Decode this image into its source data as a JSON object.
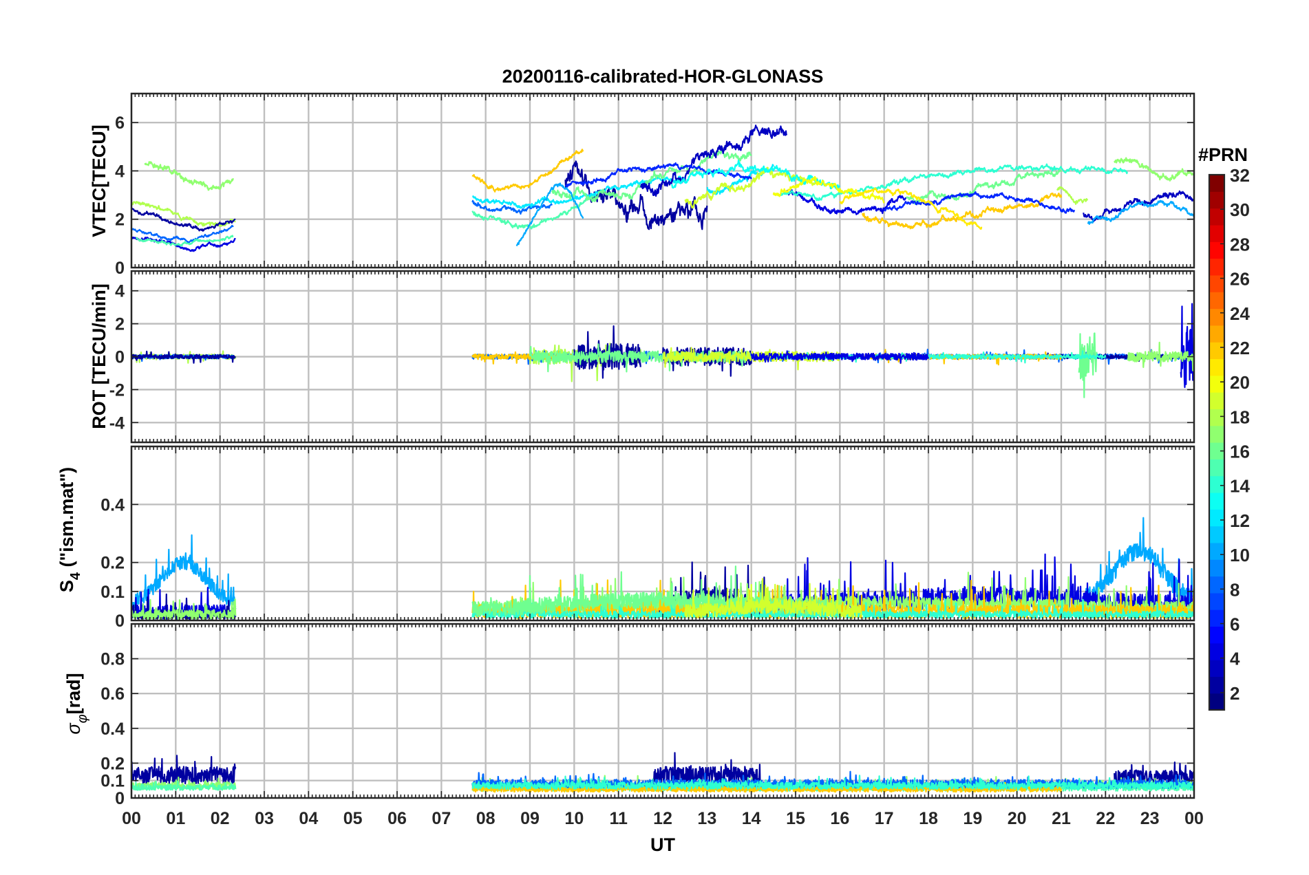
{
  "chart_data": {
    "type": "line",
    "title": "20200116-calibrated-HOR-GLONASS",
    "xlabel": "UT",
    "x_tick_labels": [
      "00",
      "01",
      "02",
      "03",
      "04",
      "05",
      "06",
      "07",
      "08",
      "09",
      "10",
      "11",
      "12",
      "13",
      "14",
      "15",
      "16",
      "17",
      "18",
      "19",
      "20",
      "21",
      "22",
      "23",
      "00"
    ],
    "xlim_hours": [
      0,
      24
    ],
    "grid": true,
    "colorbar": {
      "label": "#PRN",
      "colormap": "jet",
      "range": [
        1,
        32
      ],
      "tick_labels": [
        "2",
        "4",
        "6",
        "8",
        "10",
        "12",
        "14",
        "16",
        "18",
        "20",
        "22",
        "24",
        "26",
        "28",
        "30",
        "32"
      ]
    },
    "panels": [
      {
        "id": "vtec",
        "ylabel": "VTEC[TECU]",
        "ylim": [
          0,
          7.2
        ],
        "yticks": [
          0,
          2,
          4,
          6
        ],
        "ytick_labels": [
          "0",
          "2",
          "4",
          "6"
        ],
        "series": [
          {
            "prn": 18,
            "segments": [
              {
                "t0": 0.0,
                "t1": 2.35,
                "base": 2.2,
                "amp": 0.5,
                "noise": 0.15
              },
              {
                "t0": 20.9,
                "t1": 21.6,
                "base": 3.0,
                "amp": 0.3,
                "noise": 0.15
              }
            ]
          },
          {
            "prn": 17,
            "segments": [
              {
                "t0": 0.3,
                "t1": 2.3,
                "base": 3.8,
                "amp": 0.6,
                "noise": 0.2
              },
              {
                "t0": 22.2,
                "t1": 24.0,
                "base": 4.0,
                "amp": 0.5,
                "noise": 0.2
              }
            ]
          },
          {
            "prn": 2,
            "segments": [
              {
                "t0": 0.0,
                "t1": 2.35,
                "base": 2.1,
                "amp": 0.5,
                "noise": 0.12
              },
              {
                "t0": 9.8,
                "t1": 13.0,
                "base": 2.8,
                "amp": 0.9,
                "noise": 0.6
              }
            ]
          },
          {
            "prn": 4,
            "segments": [
              {
                "t0": 0.0,
                "t1": 2.35,
                "base": 1.1,
                "amp": 0.3,
                "noise": 0.12
              },
              {
                "t0": 14.8,
                "t1": 17.5,
                "base": 2.8,
                "amp": 0.6,
                "noise": 0.2
              }
            ]
          },
          {
            "prn": 8,
            "segments": [
              {
                "t0": 0.0,
                "t1": 2.3,
                "base": 1.5,
                "amp": 0.4,
                "noise": 0.1
              },
              {
                "t0": 7.7,
                "t1": 9.5,
                "base": 2.6,
                "amp": 0.4,
                "noise": 0.15
              }
            ]
          },
          {
            "prn": 15,
            "segments": [
              {
                "t0": 0.1,
                "t1": 2.3,
                "base": 1.2,
                "amp": 0.2,
                "noise": 0.1
              },
              {
                "t0": 7.7,
                "t1": 10.5,
                "base": 2.3,
                "amp": 0.8,
                "noise": 0.15
              }
            ]
          },
          {
            "prn": 22,
            "segments": [
              {
                "t0": 7.7,
                "t1": 10.2,
                "base": 4.0,
                "amp": 1.1,
                "noise": 0.15
              },
              {
                "t0": 16.5,
                "t1": 21.0,
                "base": 2.4,
                "amp": 0.7,
                "noise": 0.2
              }
            ]
          },
          {
            "prn": 12,
            "segments": [
              {
                "t0": 7.7,
                "t1": 12.5,
                "base": 3.2,
                "amp": 0.7,
                "noise": 0.15
              },
              {
                "t0": 13.0,
                "t1": 14.5,
                "base": 3.6,
                "amp": 0.6,
                "noise": 0.2
              }
            ]
          },
          {
            "prn": 16,
            "segments": [
              {
                "t0": 9.5,
                "t1": 14.0,
                "base": 3.8,
                "amp": 1.1,
                "noise": 0.25
              },
              {
                "t0": 17.5,
                "t1": 21.0,
                "base": 3.4,
                "amp": 0.6,
                "noise": 0.2
              }
            ]
          },
          {
            "prn": 3,
            "segments": [
              {
                "t0": 11.5,
                "t1": 14.8,
                "base": 4.4,
                "amp": 1.3,
                "noise": 0.35
              },
              {
                "t0": 21.5,
                "t1": 24.0,
                "base": 2.6,
                "amp": 0.4,
                "noise": 0.2
              }
            ]
          },
          {
            "prn": 14,
            "segments": [
              {
                "t0": 14.6,
                "t1": 22.5,
                "base": 3.6,
                "amp": 0.7,
                "noise": 0.15
              }
            ]
          },
          {
            "prn": 19,
            "segments": [
              {
                "t0": 12.5,
                "t1": 15.5,
                "base": 3.3,
                "amp": 0.6,
                "noise": 0.25
              }
            ]
          },
          {
            "prn": 10,
            "segments": [
              {
                "t0": 8.7,
                "t1": 10.2,
                "base": 2.0,
                "amp": 1.6,
                "noise": 0.15
              },
              {
                "t0": 21.6,
                "t1": 24.0,
                "base": 2.2,
                "amp": 0.6,
                "noise": 0.15
              }
            ]
          },
          {
            "prn": 6,
            "segments": [
              {
                "t0": 9.8,
                "t1": 14.0,
                "base": 3.7,
                "amp": 0.6,
                "noise": 0.15
              },
              {
                "t0": 17.0,
                "t1": 21.3,
                "base": 2.6,
                "amp": 0.5,
                "noise": 0.15
              }
            ]
          },
          {
            "prn": 13,
            "segments": [
              {
                "t0": 12.2,
                "t1": 16.0,
                "base": 3.5,
                "amp": 0.7,
                "noise": 0.25
              }
            ]
          },
          {
            "prn": 20,
            "segments": [
              {
                "t0": 14.5,
                "t1": 17.0,
                "base": 3.0,
                "amp": 0.6,
                "noise": 0.2
              }
            ]
          },
          {
            "prn": 21,
            "segments": [
              {
                "t0": 16.0,
                "t1": 19.2,
                "base": 2.5,
                "amp": 0.9,
                "noise": 0.15
              }
            ]
          }
        ]
      },
      {
        "id": "rot",
        "ylabel": "ROT [TECU/min]",
        "ylim": [
          -5.2,
          5.2
        ],
        "yticks": [
          -4,
          -2,
          0,
          2,
          4
        ],
        "ytick_labels": [
          "-4",
          "-2",
          "0",
          "2",
          "4"
        ],
        "series": [
          {
            "prn": 18,
            "segments": [
              {
                "t0": 0.0,
                "t1": 2.35,
                "noise": 0.15
              },
              {
                "t0": 9.0,
                "t1": 11.5,
                "noise": 0.45
              }
            ]
          },
          {
            "prn": 8,
            "segments": [
              {
                "t0": 0.0,
                "t1": 2.3,
                "noise": 0.12
              },
              {
                "t0": 7.7,
                "t1": 24.0,
                "noise": 0.15
              }
            ]
          },
          {
            "prn": 2,
            "segments": [
              {
                "t0": 0.0,
                "t1": 2.35,
                "noise": 0.12
              },
              {
                "t0": 10.0,
                "t1": 11.5,
                "noise": 0.8
              },
              {
                "t0": 12.0,
                "t1": 14.0,
                "noise": 0.55
              },
              {
                "t0": 20.0,
                "t1": 24.0,
                "noise": 0.12
              }
            ]
          },
          {
            "prn": 22,
            "segments": [
              {
                "t0": 7.7,
                "t1": 10.0,
                "noise": 0.15
              },
              {
                "t0": 16.5,
                "t1": 21.0,
                "noise": 0.15
              }
            ]
          },
          {
            "prn": 16,
            "segments": [
              {
                "t0": 9.0,
                "t1": 14.0,
                "noise": 0.35
              },
              {
                "t0": 21.4,
                "t1": 21.8,
                "noise": 1.5
              }
            ]
          },
          {
            "prn": 19,
            "segments": [
              {
                "t0": 12.0,
                "t1": 16.0,
                "noise": 0.3
              }
            ]
          },
          {
            "prn": 14,
            "segments": [
              {
                "t0": 14.5,
                "t1": 22.0,
                "noise": 0.12
              }
            ]
          },
          {
            "prn": 4,
            "segments": [
              {
                "t0": 14.0,
                "t1": 18.0,
                "noise": 0.2
              },
              {
                "t0": 23.7,
                "t1": 24.0,
                "noise": 2.0
              }
            ]
          },
          {
            "prn": 17,
            "segments": [
              {
                "t0": 22.5,
                "t1": 24.0,
                "noise": 0.3
              }
            ]
          }
        ]
      },
      {
        "id": "s4",
        "ylabel": "S4 (\"ism.mat\")",
        "ylim": [
          0,
          0.6
        ],
        "yticks": [
          0,
          0.1,
          0.2,
          0.4
        ],
        "ytick_labels": [
          "0",
          "0.1",
          "0.2",
          "0.4"
        ],
        "series": [
          {
            "prn": 10,
            "segments": [
              {
                "t0": 0.0,
                "t1": 2.35,
                "base": 0.05,
                "bump": 0.15,
                "noise": 0.03
              },
              {
                "t0": 21.5,
                "t1": 24.0,
                "base": 0.06,
                "bump": 0.18,
                "noise": 0.04
              }
            ]
          },
          {
            "prn": 4,
            "segments": [
              {
                "t0": 0.0,
                "t1": 2.35,
                "base": 0.03,
                "bump": 0.0,
                "noise": 0.03
              },
              {
                "t0": 14.5,
                "t1": 24.0,
                "base": 0.05,
                "bump": 0.03,
                "noise": 0.045
              }
            ]
          },
          {
            "prn": 2,
            "segments": [
              {
                "t0": 0.0,
                "t1": 2.35,
                "base": 0.02,
                "bump": 0.0,
                "noise": 0.02
              },
              {
                "t0": 11.8,
                "t1": 14.5,
                "base": 0.04,
                "bump": 0.05,
                "noise": 0.04
              }
            ]
          },
          {
            "prn": 17,
            "segments": [
              {
                "t0": 0.0,
                "t1": 2.35,
                "base": 0.02,
                "bump": 0.0,
                "noise": 0.02
              },
              {
                "t0": 7.7,
                "t1": 24.0,
                "base": 0.04,
                "bump": 0.02,
                "noise": 0.03
              }
            ]
          },
          {
            "prn": 22,
            "segments": [
              {
                "t0": 7.7,
                "t1": 24.0,
                "base": 0.03,
                "bump": 0.0,
                "noise": 0.03
              }
            ]
          },
          {
            "prn": 14,
            "segments": [
              {
                "t0": 7.7,
                "t1": 24.0,
                "base": 0.02,
                "bump": 0.0,
                "noise": 0.015
              }
            ]
          },
          {
            "prn": 16,
            "segments": [
              {
                "t0": 7.7,
                "t1": 16.0,
                "base": 0.04,
                "bump": 0.03,
                "noise": 0.035
              }
            ]
          },
          {
            "prn": 19,
            "segments": [
              {
                "t0": 12.5,
                "t1": 16.5,
                "base": 0.03,
                "bump": 0.02,
                "noise": 0.03
              }
            ]
          }
        ]
      },
      {
        "id": "sigma_phi",
        "ylabel": "σφ[rad]",
        "ylim": [
          0,
          1.0
        ],
        "yticks": [
          0,
          0.1,
          0.2,
          0.4,
          0.6,
          0.8
        ],
        "ytick_labels": [
          "0",
          "0.1",
          "0.2",
          "0.4",
          "0.6",
          "0.8"
        ],
        "series": [
          {
            "prn": 2,
            "segments": [
              {
                "t0": 0.0,
                "t1": 2.35,
                "base": 0.13,
                "noise": 0.05
              },
              {
                "t0": 11.8,
                "t1": 14.2,
                "base": 0.13,
                "noise": 0.05
              },
              {
                "t0": 22.2,
                "t1": 24.0,
                "base": 0.12,
                "noise": 0.04
              }
            ]
          },
          {
            "prn": 17,
            "segments": [
              {
                "t0": 0.0,
                "t1": 2.35,
                "base": 0.07,
                "noise": 0.02
              },
              {
                "t0": 7.7,
                "t1": 24.0,
                "base": 0.07,
                "noise": 0.02
              }
            ]
          },
          {
            "prn": 15,
            "segments": [
              {
                "t0": 0.0,
                "t1": 2.35,
                "base": 0.06,
                "noise": 0.015
              },
              {
                "t0": 7.7,
                "t1": 24.0,
                "base": 0.06,
                "noise": 0.02
              }
            ]
          },
          {
            "prn": 8,
            "segments": [
              {
                "t0": 7.7,
                "t1": 24.0,
                "base": 0.08,
                "noise": 0.025
              }
            ]
          },
          {
            "prn": 22,
            "segments": [
              {
                "t0": 7.7,
                "t1": 21.0,
                "base": 0.05,
                "noise": 0.015
              }
            ]
          },
          {
            "prn": 14,
            "segments": [
              {
                "t0": 7.7,
                "t1": 24.0,
                "base": 0.07,
                "noise": 0.02
              }
            ]
          }
        ]
      }
    ]
  }
}
